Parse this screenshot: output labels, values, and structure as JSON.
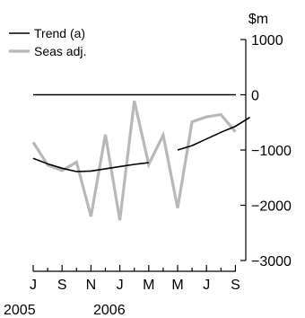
{
  "chart_data": {
    "type": "line",
    "unit_label": "$m",
    "legend_placement": "top-left",
    "ylim": [
      -3000,
      1000
    ],
    "y_ticks": [
      1000,
      0,
      -1000,
      -2000,
      -3000
    ],
    "y_tick_labels": [
      "1000",
      "0",
      "−1000",
      "−2000",
      "−3000"
    ],
    "x_tick_labels": [
      "J",
      "S",
      "N",
      "J",
      "M",
      "M",
      "J",
      "S"
    ],
    "year_labels": [
      "2005",
      "2006"
    ],
    "reference_line": 0,
    "x": [
      "2005-07",
      "2005-08",
      "2005-09",
      "2005-10",
      "2005-11",
      "2005-12",
      "2006-01",
      "2006-02",
      "2006-03",
      "2006-04",
      "2006-05",
      "2006-06",
      "2006-07",
      "2006-08",
      "2006-09"
    ],
    "series": [
      {
        "name": "Trend (a)",
        "color": "#000000",
        "segments": [
          {
            "start": 0,
            "values": [
              -1150,
              -1250,
              -1330,
              -1390,
              -1380,
              -1340,
              -1300,
              -1260,
              -1230
            ]
          },
          {
            "start": 10,
            "values": [
              -1000,
              -920,
              -800,
              -680,
              -570,
              -410
            ]
          }
        ]
      },
      {
        "name": "Seas adj.",
        "color": "#b8b8b8",
        "segments": [
          {
            "start": 0,
            "values": [
              -860,
              -1270,
              -1370,
              -1220,
              -2200,
              -720,
              -2270,
              -110,
              -1260,
              -730,
              -2050,
              -490,
              -400,
              -360,
              -670
            ]
          }
        ]
      }
    ]
  }
}
